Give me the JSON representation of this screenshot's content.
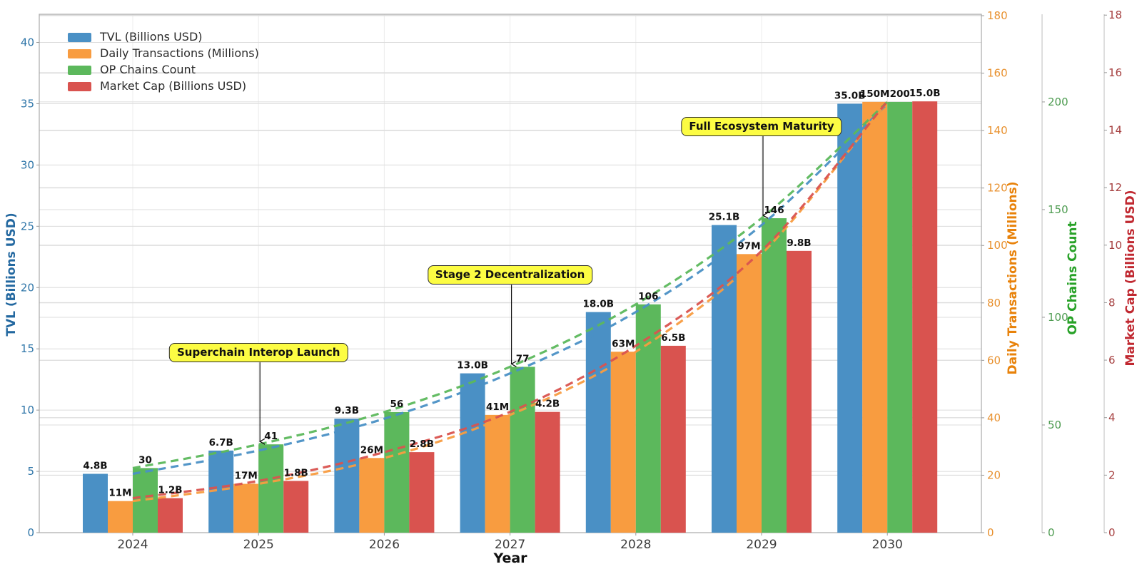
{
  "chart_data": {
    "type": "bar",
    "title": "",
    "xlabel": "Year",
    "categories": [
      "2024",
      "2025",
      "2026",
      "2027",
      "2028",
      "2029",
      "2030"
    ],
    "series": [
      {
        "name": "TVL (Billions USD)",
        "axis": "tvl",
        "color": "#4A90C5",
        "values": [
          4.8,
          6.7,
          9.3,
          13.0,
          18.0,
          25.1,
          35.0
        ],
        "labels": [
          "4.8B",
          "6.7B",
          "9.3B",
          "13.0B",
          "18.0B",
          "25.1B",
          "35.0B"
        ]
      },
      {
        "name": "Daily Transactions (Millions)",
        "axis": "transactions",
        "color": "#F89C40",
        "values": [
          11,
          17,
          26,
          41,
          63,
          97,
          150
        ],
        "labels": [
          "11M",
          "17M",
          "26M",
          "41M",
          "63M",
          "97M",
          "150M"
        ]
      },
      {
        "name": "OP Chains Count",
        "axis": "chains",
        "color": "#5CB85C",
        "values": [
          30,
          41,
          56,
          77,
          106,
          146,
          200
        ],
        "labels": [
          "30",
          "41",
          "56",
          "77",
          "106",
          "146",
          "200"
        ]
      },
      {
        "name": "Market Cap (Billions USD)",
        "axis": "mcap",
        "color": "#D9534F",
        "values": [
          1.2,
          1.8,
          2.8,
          4.2,
          6.5,
          9.8,
          15.0
        ],
        "labels": [
          "1.2B",
          "1.8B",
          "2.8B",
          "4.2B",
          "6.5B",
          "9.8B",
          "15.0B"
        ]
      }
    ],
    "axes": {
      "tvl": {
        "label": "TVL (Billions USD)",
        "side": "left",
        "tick_color": "#2E75A8",
        "label_color": "#2368A0",
        "ticks": [
          0,
          5,
          10,
          15,
          20,
          25,
          30,
          35,
          40
        ],
        "max": 42.3
      },
      "transactions": {
        "label": "Daily Transactions (Millions)",
        "side": "right",
        "tick_color": "#E8912F",
        "label_color": "#E8820A",
        "ticks": [
          0,
          20,
          40,
          60,
          80,
          100,
          120,
          140,
          160,
          180
        ],
        "max": 180.5
      },
      "chains": {
        "label": "OP Chains Count",
        "side": "right-detached-1",
        "tick_color": "#4D9B50",
        "label_color": "#27A127",
        "ticks": [
          0,
          50,
          100,
          150,
          200
        ],
        "max": 240.7
      },
      "mcap": {
        "label": "Market Cap (Billions USD)",
        "side": "right-detached-2",
        "tick_color": "#A64040",
        "label_color": "#C02830",
        "ticks": [
          0,
          2,
          4,
          6,
          8,
          10,
          12,
          14,
          16,
          18
        ],
        "max": 18.03
      }
    },
    "annotations": [
      {
        "text": "Superchain Interop Launch",
        "category": "2025",
        "series": "OP Chains Count",
        "value": 41
      },
      {
        "text": "Stage 2 Decentralization",
        "category": "2027",
        "series": "OP Chains Count",
        "value": 77
      },
      {
        "text": "Full Ecosystem Maturity",
        "category": "2029",
        "series": "OP Chains Count",
        "value": 146
      }
    ],
    "annotation_style": {
      "bg": "#FCFC43",
      "border": "#2B2B2B",
      "text_color": "#111111"
    },
    "trend_lines": {
      "style": "dashed",
      "smooth": true,
      "per_series": true
    },
    "grid": true,
    "legend_position": "upper-left"
  }
}
